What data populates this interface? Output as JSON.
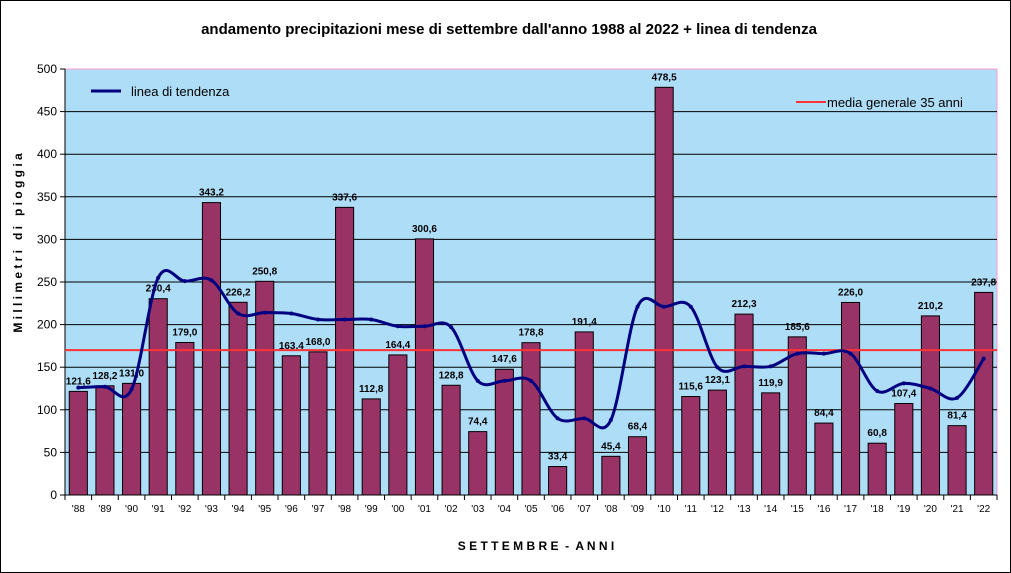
{
  "chart_data": {
    "type": "bar",
    "title": "andamento precipitazioni mese di settembre dall'anno 1988 al 2022 + linea di tendenza",
    "xlabel": "S E T T E M B R E  -  A N N I",
    "ylabel": "M i l l i m e t r i   d i   p i o g g i a",
    "ylim": [
      0,
      500
    ],
    "yticks": [
      0,
      50,
      100,
      150,
      200,
      250,
      300,
      350,
      400,
      450,
      500
    ],
    "grid": true,
    "categories": [
      "'88",
      "'89",
      "'90",
      "'91",
      "'92",
      "'93",
      "'94",
      "'95",
      "'96",
      "'97",
      "'98",
      "'99",
      "'00",
      "'01",
      "'02",
      "'03",
      "'04",
      "'05",
      "'06",
      "'07",
      "'08",
      "'09",
      "'10",
      "'11",
      "'12",
      "'13",
      "'14",
      "'15",
      "'16",
      "'17",
      "'18",
      "'19",
      "'20",
      "'21",
      "'22"
    ],
    "series": [
      {
        "values": [
          121.6,
          128.2,
          131.0,
          230.4,
          179.0,
          343.2,
          226.2,
          250.8,
          163.4,
          168.0,
          337.6,
          112.8,
          164.4,
          300.6,
          128.8,
          74.4,
          147.6,
          178.8,
          33.4,
          191.4,
          45.4,
          68.4,
          478.5,
          115.6,
          123.1,
          212.3,
          119.9,
          185.6,
          84.4,
          226.0,
          60.8,
          107.4,
          210.2,
          81.4,
          237.8
        ],
        "labels": [
          "121,6",
          "128,2",
          "131,0",
          "230,4",
          "179,0",
          "343,2",
          "226,2",
          "250,8",
          "163,4",
          "168,0",
          "337,6",
          "112,8",
          "164,4",
          "300,6",
          "128,8",
          "74,4",
          "147,6",
          "178,8",
          "33,4",
          "191,4",
          "45,4",
          "68,4",
          "478,5",
          "115,6",
          "123,1",
          "212,3",
          "119,9",
          "185,6",
          "84,4",
          "226,0",
          "60,8",
          "107,4",
          "210,2",
          "81,4",
          "237,8"
        ],
        "color": "#993366"
      },
      {
        "name": "linea di tendenza",
        "type": "line",
        "color": "#000080",
        "values": [
          126,
          127,
          124,
          255,
          251,
          252,
          213,
          214,
          213,
          206,
          206,
          206,
          198,
          198,
          197,
          134,
          134,
          134,
          90,
          90,
          88,
          221,
          221,
          221,
          150,
          151,
          151,
          166,
          166,
          166,
          122,
          131,
          125,
          114,
          160
        ]
      }
    ],
    "reference_line": {
      "name": "media generale 35 anni",
      "value": 170,
      "color": "#ff3333"
    },
    "colors": {
      "plot_bg": "#aeddf7",
      "plot_border": "#ff99cc",
      "grid": "#000000"
    },
    "legend_placement": "top"
  }
}
